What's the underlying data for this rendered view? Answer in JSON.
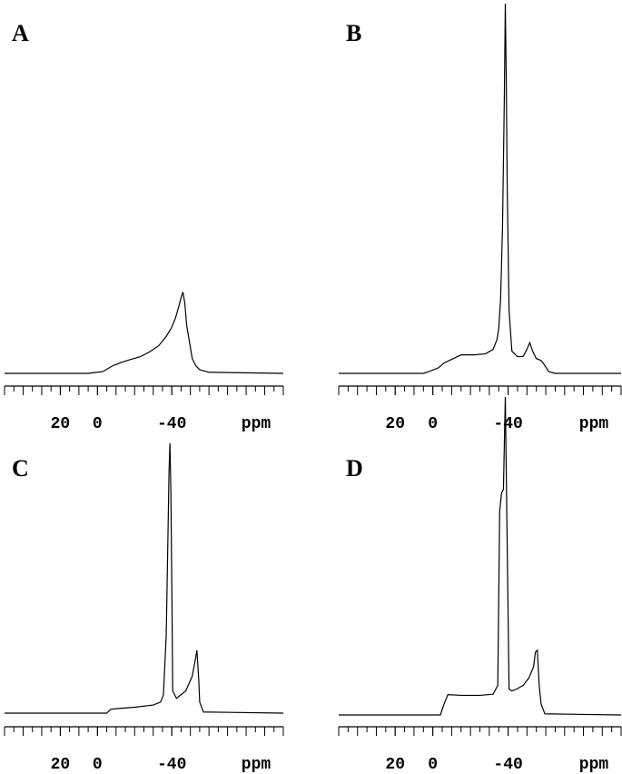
{
  "chart_data": [
    {
      "type": "line",
      "title": "A",
      "xlabel": "ppm",
      "color": "#000000",
      "x": [
        50,
        5,
        -3,
        -8,
        -13,
        -18,
        -23,
        -28,
        -33,
        -37,
        -40,
        -42,
        -44,
        -45,
        -46,
        -47,
        -48,
        -50,
        -51,
        -53,
        -55,
        -60,
        -100
      ],
      "values": [
        0,
        0,
        0.5,
        2,
        3,
        3.8,
        4.5,
        5.8,
        7.5,
        10,
        12.5,
        15,
        18.5,
        20.5,
        22,
        19,
        13,
        7,
        4,
        2,
        1,
        0.3,
        0
      ],
      "xlim": [
        50,
        -100
      ],
      "ylim": [
        0,
        100
      ],
      "xticks": [
        20,
        0,
        -40
      ],
      "xminorticks": [
        50,
        45,
        40,
        35,
        30,
        25,
        20,
        15,
        10,
        5,
        0,
        -5,
        -10,
        -15,
        -20,
        -25,
        -30,
        -35,
        -40,
        -45,
        -50,
        -55,
        -60,
        -65,
        -70,
        -75,
        -80,
        -85,
        -90,
        -95,
        -100
      ]
    },
    {
      "type": "line",
      "title": "B",
      "xlabel": "ppm",
      "color": "#000000",
      "x": [
        50,
        5,
        2,
        -3,
        -6,
        -10,
        -15,
        -22,
        -28,
        -32,
        -34,
        -35,
        -36,
        -37,
        -38,
        -38.5,
        -39,
        -39.5,
        -40.5,
        -42,
        -45,
        -48,
        -50,
        -51.5,
        -53,
        -55,
        -57.5,
        -59,
        -61.5,
        -65,
        -100
      ],
      "values": [
        0,
        0,
        0.5,
        1.5,
        2.8,
        3.8,
        5,
        5,
        5.3,
        6.5,
        9,
        12,
        20,
        39,
        75,
        100,
        80,
        51,
        17,
        6,
        4.5,
        4.6,
        6.5,
        8.3,
        6,
        4,
        3.5,
        2.5,
        0.5,
        0,
        0
      ],
      "xlim": [
        50,
        -100
      ],
      "ylim": [
        0,
        100
      ],
      "xticks": [
        20,
        0,
        -40
      ],
      "xminorticks": [
        50,
        45,
        40,
        35,
        30,
        25,
        20,
        15,
        10,
        5,
        0,
        -5,
        -10,
        -15,
        -20,
        -25,
        -30,
        -35,
        -40,
        -45,
        -50,
        -55,
        -60,
        -65,
        -70,
        -75,
        -80,
        -85,
        -90,
        -95,
        -100
      ]
    },
    {
      "type": "line",
      "title": "C",
      "xlabel": "ppm",
      "color": "#000000",
      "x": [
        50,
        -5,
        -7,
        -10,
        -20,
        -30,
        -34,
        -35.5,
        -37,
        -38,
        -38.5,
        -39,
        -39.5,
        -40,
        -40.5,
        -42.5,
        -47.5,
        -51,
        -52.5,
        -53.5,
        -54.5,
        -55,
        -57,
        -100
      ],
      "values": [
        0,
        0,
        1,
        1.2,
        1.6,
        2.2,
        3,
        5,
        21,
        50,
        65,
        73,
        60,
        35,
        6,
        4,
        6,
        10,
        14,
        17,
        9,
        3,
        0.3,
        0
      ],
      "xlim": [
        50,
        -100
      ],
      "ylim": [
        0,
        100
      ],
      "xticks": [
        20,
        0,
        -40
      ],
      "xminorticks": [
        50,
        45,
        40,
        35,
        30,
        25,
        20,
        15,
        10,
        5,
        0,
        -5,
        -10,
        -15,
        -20,
        -25,
        -30,
        -35,
        -40,
        -45,
        -50,
        -55,
        -60,
        -65,
        -70,
        -75,
        -80,
        -85,
        -90,
        -95,
        -100
      ]
    },
    {
      "type": "line",
      "title": "D",
      "xlabel": "ppm",
      "color": "#000000",
      "x": [
        50,
        -4,
        -6,
        -8,
        -15,
        -25,
        -32,
        -34.5,
        -35.5,
        -36.5,
        -37.5,
        -38.5,
        -39.5,
        -40.5,
        -42,
        -44.5,
        -48,
        -51,
        -53.5,
        -54.5,
        -55.5,
        -56.5,
        -57.5,
        -59.5,
        -100
      ],
      "values": [
        0,
        0,
        3,
        5.5,
        5.3,
        5.3,
        5.6,
        8,
        55,
        60,
        61,
        86,
        46,
        7,
        6.5,
        7,
        8,
        10,
        13,
        17,
        17.5,
        8,
        3,
        0.3,
        0
      ],
      "xlim": [
        50,
        -100
      ],
      "ylim": [
        0,
        100
      ],
      "xticks": [
        20,
        0,
        -40
      ],
      "xminorticks": [
        50,
        45,
        40,
        35,
        30,
        25,
        20,
        15,
        10,
        5,
        0,
        -5,
        -10,
        -15,
        -20,
        -25,
        -30,
        -35,
        -40,
        -45,
        -50,
        -55,
        -60,
        -65,
        -70,
        -75,
        -80,
        -85,
        -90,
        -95,
        -100
      ]
    }
  ]
}
